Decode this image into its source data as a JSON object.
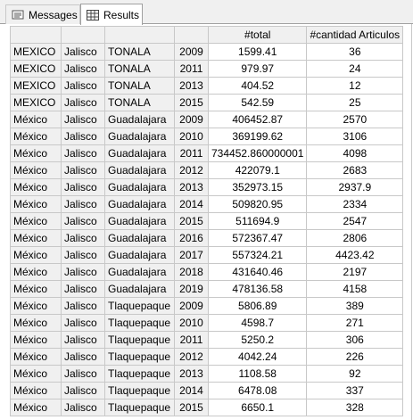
{
  "tabs": [
    {
      "label": "Messages",
      "icon": "messages-icon"
    },
    {
      "label": "Results",
      "icon": "grid-icon",
      "active": true
    }
  ],
  "columns": [
    "",
    "",
    "",
    "",
    "#total",
    "#cantidad Articulos"
  ],
  "rows": [
    [
      "MEXICO",
      "Jalisco",
      "TONALA",
      "2009",
      "1599.41",
      "36"
    ],
    [
      "MEXICO",
      "Jalisco",
      "TONALA",
      "2011",
      "979.97",
      "24"
    ],
    [
      "MEXICO",
      "Jalisco",
      "TONALA",
      "2013",
      "404.52",
      "12"
    ],
    [
      "MEXICO",
      "Jalisco",
      "TONALA",
      "2015",
      "542.59",
      "25"
    ],
    [
      "México",
      "Jalisco",
      "Guadalajara",
      "2009",
      "406452.87",
      "2570"
    ],
    [
      "México",
      "Jalisco",
      "Guadalajara",
      "2010",
      "369199.62",
      "3106"
    ],
    [
      "México",
      "Jalisco",
      "Guadalajara",
      "2011",
      "734452.860000001",
      "4098"
    ],
    [
      "México",
      "Jalisco",
      "Guadalajara",
      "2012",
      "422079.1",
      "2683"
    ],
    [
      "México",
      "Jalisco",
      "Guadalajara",
      "2013",
      "352973.15",
      "2937.9"
    ],
    [
      "México",
      "Jalisco",
      "Guadalajara",
      "2014",
      "509820.95",
      "2334"
    ],
    [
      "México",
      "Jalisco",
      "Guadalajara",
      "2015",
      "511694.9",
      "2547"
    ],
    [
      "México",
      "Jalisco",
      "Guadalajara",
      "2016",
      "572367.47",
      "2806"
    ],
    [
      "México",
      "Jalisco",
      "Guadalajara",
      "2017",
      "557324.21",
      "4423.42"
    ],
    [
      "México",
      "Jalisco",
      "Guadalajara",
      "2018",
      "431640.46",
      "2197"
    ],
    [
      "México",
      "Jalisco",
      "Guadalajara",
      "2019",
      "478136.58",
      "4158"
    ],
    [
      "México",
      "Jalisco",
      "Tlaquepaque",
      "2009",
      "5806.89",
      "389"
    ],
    [
      "México",
      "Jalisco",
      "Tlaquepaque",
      "2010",
      "4598.7",
      "271"
    ],
    [
      "México",
      "Jalisco",
      "Tlaquepaque",
      "2011",
      "5250.2",
      "306"
    ],
    [
      "México",
      "Jalisco",
      "Tlaquepaque",
      "2012",
      "4042.24",
      "226"
    ],
    [
      "México",
      "Jalisco",
      "Tlaquepaque",
      "2013",
      "1108.58",
      "92"
    ],
    [
      "México",
      "Jalisco",
      "Tlaquepaque",
      "2014",
      "6478.08",
      "337"
    ],
    [
      "México",
      "Jalisco",
      "Tlaquepaque",
      "2015",
      "6650.1",
      "328"
    ]
  ],
  "colors": {
    "header_bg": "#f0f0f0",
    "grid_line": "#c8c8c8",
    "cell_bg": "#ffffff"
  }
}
